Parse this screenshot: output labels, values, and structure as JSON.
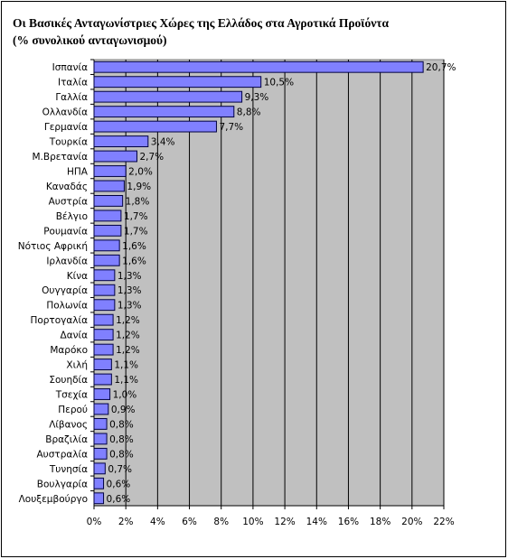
{
  "chart_data": {
    "type": "bar",
    "orientation": "horizontal",
    "title": [
      "Οι Βασικές Ανταγωνίστριες Χώρες της Ελλάδος στα Αγροτικά Προϊόντα",
      "(% συνολικού ανταγωνισμού)"
    ],
    "categories": [
      "Ισπανία",
      "Ιταλία",
      "Γαλλία",
      "Ολλανδία",
      "Γερμανία",
      "Τουρκία",
      "Μ.Βρετανία",
      "ΗΠΑ",
      "Καναδάς",
      "Αυστρία",
      "Βέλγιο",
      "Ρουμανία",
      "Νότιος Αφρική",
      "Ιρλανδία",
      "Κίνα",
      "Ουγγαρία",
      "Πολωνία",
      "Πορτογαλία",
      "Δανία",
      "Μαρόκο",
      "Χιλή",
      "Σουηδία",
      "Τσεχία",
      "Περού",
      "Λίβανος",
      "Βραζιλία",
      "Αυστραλία",
      "Τυνησία",
      "Βουλγαρία",
      "Λουξεμβούργο"
    ],
    "values": [
      20.7,
      10.5,
      9.3,
      8.8,
      7.7,
      3.4,
      2.7,
      2.0,
      1.9,
      1.8,
      1.7,
      1.7,
      1.6,
      1.6,
      1.3,
      1.3,
      1.3,
      1.2,
      1.2,
      1.2,
      1.1,
      1.1,
      1.0,
      0.9,
      0.8,
      0.8,
      0.8,
      0.7,
      0.6,
      0.6
    ],
    "value_labels": [
      "20,7%",
      "10,5%",
      "9,3%",
      "8,8%",
      "7,7%",
      "3,4%",
      "2,7%",
      "2,0%",
      "1,9%",
      "1,8%",
      "1,7%",
      "1,7%",
      "1,6%",
      "1,6%",
      "1,3%",
      "1,3%",
      "1,3%",
      "1,2%",
      "1,2%",
      "1,2%",
      "1,1%",
      "1,1%",
      "1,0%",
      "0,9%",
      "0,8%",
      "0,8%",
      "0,8%",
      "0,7%",
      "0,6%",
      "0,6%"
    ],
    "color": "#8080ff",
    "xlim": [
      0,
      22
    ],
    "xticks": [
      {
        "value": 0,
        "label": "0%"
      },
      {
        "value": 2,
        "label": "2%"
      },
      {
        "value": 4,
        "label": "4%"
      },
      {
        "value": 6,
        "label": "6%"
      },
      {
        "value": 8,
        "label": "8%"
      },
      {
        "value": 10,
        "label": "10%"
      },
      {
        "value": 12,
        "label": "12%"
      },
      {
        "value": 14,
        "label": "14%"
      },
      {
        "value": 16,
        "label": "16%"
      },
      {
        "value": 18,
        "label": "18%"
      },
      {
        "value": 20,
        "label": "20%"
      },
      {
        "value": 22,
        "label": "22%"
      }
    ],
    "grid": true
  }
}
